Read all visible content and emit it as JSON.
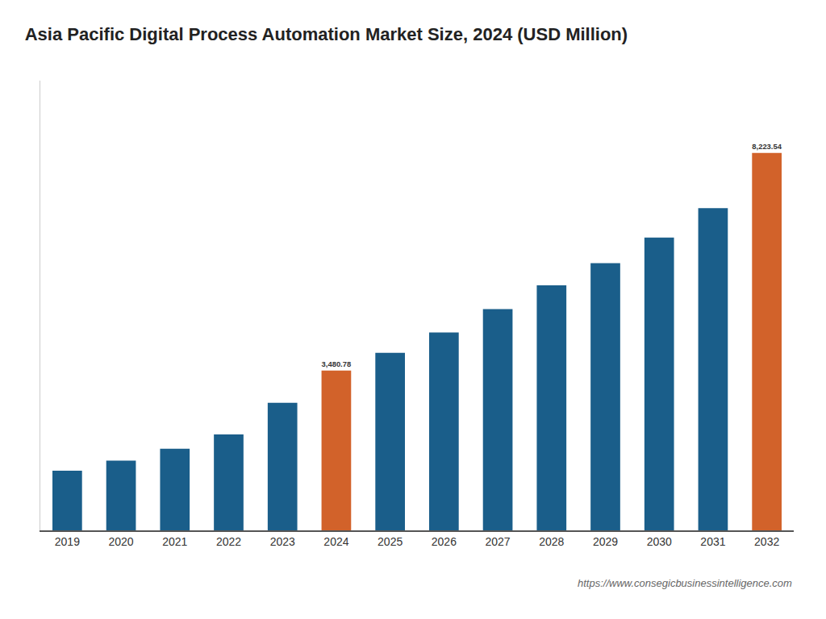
{
  "chart_data": {
    "type": "bar",
    "title": "Asia Pacific Digital Process Automation Market Size, 2024 (USD Million)",
    "categories": [
      "2019",
      "2020",
      "2021",
      "2022",
      "2023",
      "2024",
      "2025",
      "2026",
      "2027",
      "2028",
      "2029",
      "2030",
      "2031",
      "2032"
    ],
    "values": [
      1300,
      1520,
      1780,
      2090,
      2780,
      3480.78,
      3870,
      4310,
      4820,
      5340,
      5820,
      6380,
      7020,
      8223.54
    ],
    "value_labels": [
      null,
      null,
      null,
      null,
      null,
      "3,480.78",
      null,
      null,
      null,
      null,
      null,
      null,
      null,
      "8,223.54"
    ],
    "colors": [
      "#1A5E8A",
      "#1A5E8A",
      "#1A5E8A",
      "#1A5E8A",
      "#1A5E8A",
      "#D2622A",
      "#1A5E8A",
      "#1A5E8A",
      "#1A5E8A",
      "#1A5E8A",
      "#1A5E8A",
      "#1A5E8A",
      "#1A5E8A",
      "#D2622A"
    ],
    "ylim": [
      0,
      9800
    ],
    "tick_labels": "x",
    "grid": false,
    "annotations": [
      "https://www.consegicbusinessintelligence.com"
    ]
  }
}
